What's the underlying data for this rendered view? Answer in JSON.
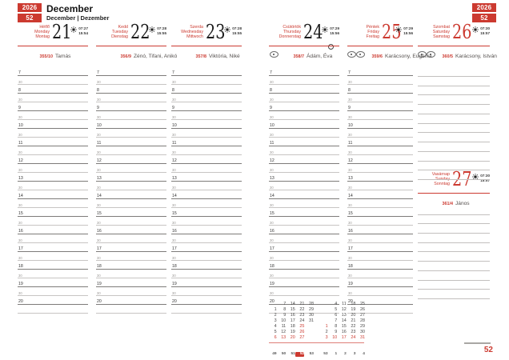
{
  "colors": {
    "accent": "#cc3a30",
    "hour_line": "#7e7b79",
    "half_line": "#c7c5c3"
  },
  "header": {
    "year": "2026",
    "week": "52",
    "month_title": "December",
    "month_subtitle": "December | Dezember"
  },
  "footer": {
    "week": "52"
  },
  "days": [
    {
      "dow_hu": "Hétfő",
      "dow_en": "Monday",
      "dow_de": "Montag",
      "num": "21",
      "sunrise": "07:27",
      "sunset": "15:54",
      "doy": "355/10",
      "names": "Tamás"
    },
    {
      "dow_hu": "Kedd",
      "dow_en": "Tuesday",
      "dow_de": "Dienstag",
      "num": "22",
      "sunrise": "07:28",
      "sunset": "15:55",
      "doy": "356/9",
      "names": "Zénó, Tifani, Anikó"
    },
    {
      "dow_hu": "Szerda",
      "dow_en": "Wednesday",
      "dow_de": "Mittwoch",
      "num": "23",
      "sunrise": "07:28",
      "sunset": "15:55",
      "doy": "357/8",
      "names": "Viktória, Niké"
    },
    {
      "dow_hu": "Csütörtök",
      "dow_en": "Thursday",
      "dow_de": "Donnerstag",
      "num": "24",
      "sunrise": "07:29",
      "sunset": "15:56",
      "doy": "358/7",
      "names": "Ádám, Éva"
    },
    {
      "dow_hu": "Péntek",
      "dow_en": "Friday",
      "dow_de": "Freitag",
      "num": "25",
      "sunrise": "07:29",
      "sunset": "15:56",
      "doy": "359/6",
      "names": "Karácsony, Eugénia"
    },
    {
      "dow_hu": "Szombat",
      "dow_en": "Saturday",
      "dow_de": "Samstag",
      "num": "26",
      "sunrise": "07:30",
      "sunset": "15:57",
      "doy": "360/5",
      "names": "Karácsony, István"
    },
    {
      "dow_hu": "Vasárnap",
      "dow_en": "Sunday",
      "dow_de": "Sonntag",
      "num": "27",
      "sunrise": "07:30",
      "sunset": "15:57",
      "doy": "361/4",
      "names": "János"
    }
  ],
  "schedule": {
    "hours": [
      "7",
      "8",
      "9",
      "10",
      "11",
      "12",
      "13",
      "14",
      "15",
      "16",
      "17",
      "18",
      "19",
      "20"
    ],
    "half_label": "30",
    "saturday_plain_lines": 12,
    "sunday_plain_lines": 10
  },
  "mini_calendar": {
    "months": [
      {
        "rows": [
          [
            "",
            "7",
            "14",
            "21",
            "28"
          ],
          [
            "1",
            "8",
            "15",
            "22",
            "29"
          ],
          [
            "2",
            "9",
            "16",
            "23",
            "30"
          ],
          [
            "3",
            "10",
            "17",
            "24",
            "31"
          ],
          [
            "4",
            "11",
            "18",
            "25",
            ""
          ],
          [
            "5",
            "12",
            "19",
            "26",
            ""
          ],
          [
            "6",
            "13",
            "20",
            "27",
            ""
          ]
        ],
        "red": [
          "6",
          "13",
          "20",
          "27",
          "25",
          "26"
        ]
      },
      {
        "rows": [
          [
            "",
            "4",
            "11",
            "18",
            "25"
          ],
          [
            "",
            "5",
            "12",
            "19",
            "26"
          ],
          [
            "",
            "6",
            "13",
            "20",
            "27"
          ],
          [
            "",
            "7",
            "14",
            "21",
            "28"
          ],
          [
            "1",
            "8",
            "15",
            "22",
            "29"
          ],
          [
            "2",
            "9",
            "16",
            "23",
            "30"
          ],
          [
            "3",
            "10",
            "17",
            "24",
            "31"
          ]
        ],
        "red": [
          "1",
          "3",
          "10",
          "17",
          "24",
          "31"
        ]
      }
    ],
    "week_numbers": [
      "49",
      "50",
      "51",
      "52",
      "53",
      "53",
      "1",
      "2",
      "3",
      "4"
    ],
    "current_week_index": 3
  }
}
